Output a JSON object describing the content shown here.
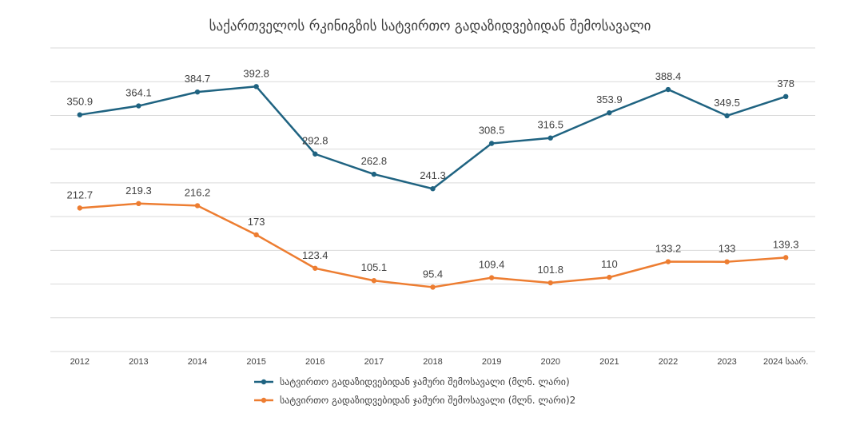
{
  "chart_data": {
    "type": "line",
    "title": "საქართველოს რკინიგზის სატვირთო გადაზიდვებიდან შემოსავალი",
    "categories": [
      "2012",
      "2013",
      "2014",
      "2015",
      "2016",
      "2017",
      "2018",
      "2019",
      "2020",
      "2021",
      "2022",
      "2023",
      "2024 საარ."
    ],
    "series": [
      {
        "name": "სატვირთო გადაზიდვებიდან ჯამური შემოსავალი (მლნ. ლარი)",
        "color": "#1f6381",
        "values": [
          350.9,
          364.1,
          384.7,
          392.8,
          292.8,
          262.8,
          241.3,
          308.5,
          316.5,
          353.9,
          388.4,
          349.5,
          378
        ]
      },
      {
        "name": "სატვირთო გადაზიდვებიდან ჯამური შემოსავალი (მლნ. ლარი)2",
        "color": "#ed7d31",
        "values": [
          212.7,
          219.3,
          216.2,
          173,
          123.4,
          105.1,
          95.4,
          109.4,
          101.8,
          110,
          133.2,
          133,
          139.3
        ]
      }
    ],
    "ylim": [
      0,
      450
    ],
    "grid": true,
    "legend_position": "bottom"
  }
}
